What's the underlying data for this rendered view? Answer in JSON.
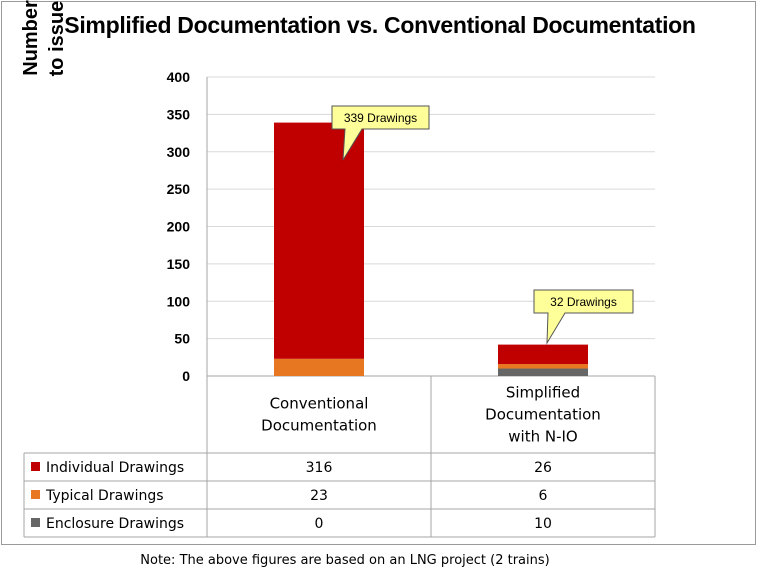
{
  "chart_data": {
    "type": "bar",
    "stacked": true,
    "title": "Simplified Documentation vs. Conventional Documentation",
    "ylabel_lines": [
      "Number of Drawings",
      "to issue for approval"
    ],
    "ylim": [
      0,
      400
    ],
    "yticks": [
      0,
      50,
      100,
      150,
      200,
      250,
      300,
      350,
      400
    ],
    "grid": true,
    "categories": [
      [
        "Conventional",
        "Documentation"
      ],
      [
        "Simplified",
        "Documentation",
        "with N-IO"
      ]
    ],
    "series": [
      {
        "name": "Enclosure Drawings",
        "values": [
          0,
          10
        ],
        "color": "#666666"
      },
      {
        "name": "Typical Drawings",
        "values": [
          23,
          6
        ],
        "color": "#e87722"
      },
      {
        "name": "Individual Drawings",
        "values": [
          316,
          26
        ],
        "color": "#c00000"
      }
    ],
    "table_rows": [
      {
        "name": "Individual Drawings",
        "color": "#c00000",
        "values": [
          "316",
          "26"
        ]
      },
      {
        "name": "Typical Drawings",
        "color": "#e87722",
        "values": [
          "23",
          "6"
        ]
      },
      {
        "name": "Enclosure Drawings",
        "color": "#666666",
        "values": [
          "0",
          "10"
        ]
      }
    ],
    "annotations": [
      "339 Drawings",
      "32 Drawings"
    ],
    "callout_fill": "#ffff99"
  },
  "note": "Note: The above figures are based on an LNG project (2 trains)"
}
